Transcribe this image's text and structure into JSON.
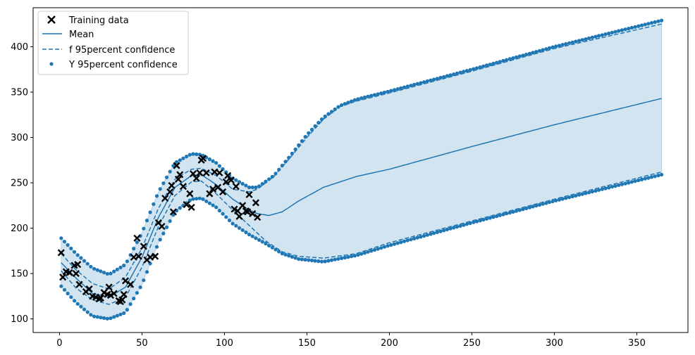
{
  "chart_data": {
    "type": "line",
    "title": "",
    "xlabel": "",
    "ylabel": "",
    "xlim": [
      -16,
      381
    ],
    "ylim": [
      85,
      443
    ],
    "xticks": [
      0,
      50,
      100,
      150,
      200,
      250,
      300,
      350
    ],
    "yticks": [
      100,
      150,
      200,
      250,
      300,
      350,
      400
    ],
    "grid": false,
    "legend_position": "top-left",
    "colors": {
      "main": "#1f77b4",
      "band": "#1f77b4",
      "training": "#000000"
    },
    "legend": [
      {
        "label": "Training data",
        "kind": "x-marker"
      },
      {
        "label": "Mean",
        "kind": "solid-line"
      },
      {
        "label": "f 95percent confidence",
        "kind": "dashed-line"
      },
      {
        "label": "Y 95percent confidence",
        "kind": "dot"
      }
    ],
    "mean": {
      "x": [
        1,
        10,
        20,
        30,
        40,
        50,
        60,
        70,
        80,
        86,
        95,
        105,
        115,
        120,
        127,
        135,
        145,
        160,
        180,
        200,
        250,
        300,
        365
      ],
      "y": [
        162,
        145,
        128,
        124,
        135,
        168,
        212,
        245,
        258,
        259,
        248,
        232,
        220,
        216,
        214,
        218,
        230,
        245,
        257,
        265,
        290,
        314,
        343
      ]
    },
    "f_upper": {
      "x": [
        1,
        10,
        20,
        30,
        40,
        50,
        60,
        70,
        80,
        86,
        95,
        105,
        115,
        120,
        130,
        140,
        150,
        160,
        170,
        180,
        200,
        250,
        300,
        365
      ],
      "y": [
        172,
        154,
        139,
        133,
        146,
        178,
        222,
        254,
        265,
        266,
        258,
        243,
        240,
        243,
        257,
        278,
        300,
        320,
        334,
        340,
        349,
        373,
        398,
        425
      ]
    },
    "f_lower": {
      "x": [
        1,
        10,
        20,
        30,
        40,
        50,
        60,
        70,
        80,
        86,
        95,
        105,
        115,
        125,
        135,
        145,
        160,
        180,
        200,
        250,
        300,
        365
      ],
      "y": [
        153,
        134,
        121,
        116,
        124,
        157,
        202,
        236,
        251,
        252,
        238,
        220,
        203,
        186,
        174,
        169,
        167,
        172,
        184,
        208,
        232,
        262
      ]
    },
    "y_upper": {
      "x": [
        1,
        10,
        20,
        30,
        40,
        50,
        60,
        70,
        80,
        86,
        95,
        105,
        115,
        120,
        130,
        140,
        150,
        160,
        170,
        180,
        200,
        250,
        300,
        365
      ],
      "y": [
        189,
        172,
        156,
        149,
        160,
        195,
        240,
        272,
        282,
        281,
        272,
        255,
        245,
        245,
        258,
        280,
        303,
        322,
        335,
        342,
        351,
        375,
        400,
        429
      ]
    },
    "y_lower": {
      "x": [
        1,
        10,
        20,
        30,
        40,
        50,
        60,
        70,
        80,
        86,
        95,
        105,
        115,
        125,
        135,
        145,
        160,
        180,
        200,
        250,
        300,
        365
      ],
      "y": [
        136,
        118,
        103,
        100,
        107,
        138,
        184,
        218,
        232,
        233,
        223,
        205,
        193,
        183,
        172,
        166,
        163,
        170,
        181,
        206,
        230,
        259
      ]
    },
    "training_data": {
      "x": [
        1,
        2,
        4,
        6,
        9,
        10,
        11,
        12,
        16,
        18,
        20,
        22,
        24,
        25,
        27,
        29,
        30,
        31,
        33,
        36,
        37,
        38,
        39,
        40,
        43,
        45,
        47,
        48,
        51,
        53,
        55,
        58,
        60,
        62,
        64,
        67,
        68,
        69,
        71,
        72,
        73,
        75,
        77,
        79,
        80,
        81,
        83,
        85,
        86,
        87,
        89,
        91,
        93,
        94,
        96,
        97,
        99,
        101,
        102,
        104,
        106,
        107,
        108,
        109,
        111,
        113,
        114,
        115,
        117,
        119,
        120
      ],
      "y": [
        173,
        146,
        152,
        151,
        159,
        150,
        160,
        138,
        130,
        133,
        125,
        124,
        122,
        123,
        129,
        127,
        135,
        126,
        128,
        120,
        119,
        121,
        127,
        142,
        138,
        168,
        189,
        169,
        180,
        165,
        168,
        169,
        206,
        202,
        233,
        240,
        247,
        218,
        269,
        254,
        259,
        246,
        226,
        238,
        223,
        260,
        255,
        261,
        275,
        277,
        261,
        238,
        243,
        262,
        245,
        261,
        240,
        251,
        258,
        253,
        221,
        246,
        219,
        213,
        225,
        219,
        218,
        237,
        216,
        228,
        212
      ]
    }
  }
}
